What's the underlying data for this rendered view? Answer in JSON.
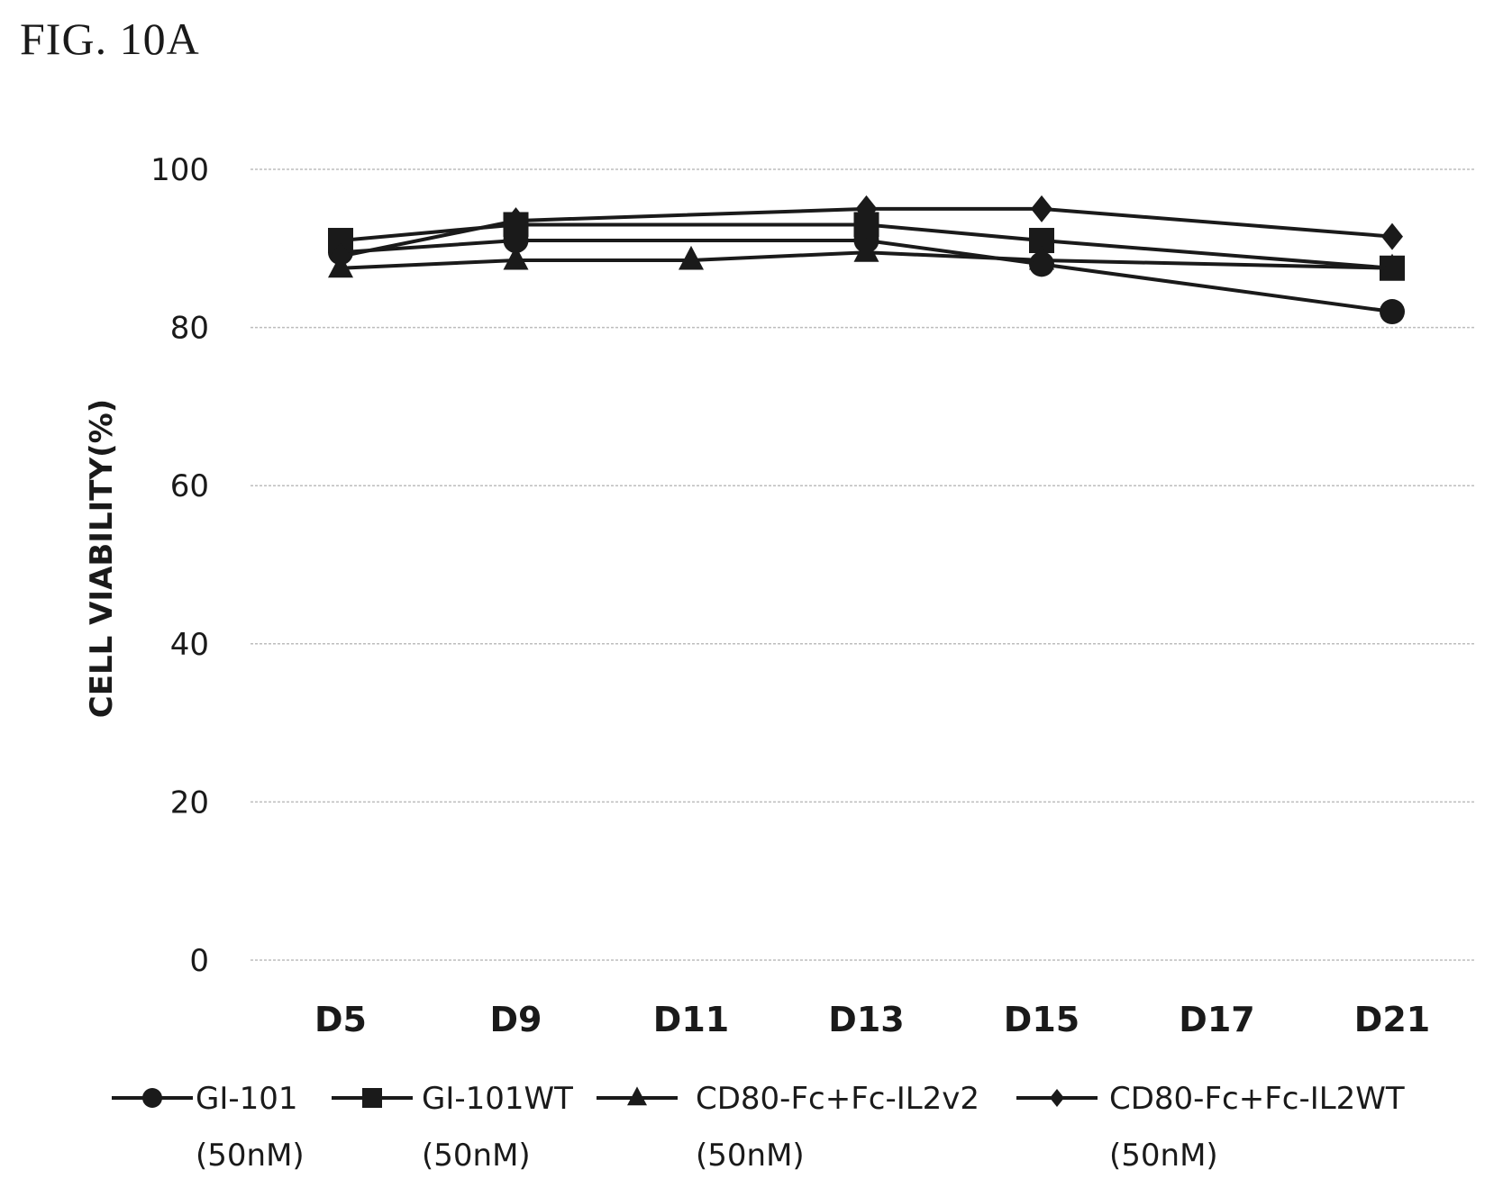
{
  "figure_label": "FIG. 10A",
  "chart_data": {
    "type": "line",
    "title": "",
    "xlabel": "",
    "ylabel": "CELL VIABILITY(%)",
    "ylim": [
      0,
      100
    ],
    "yticks": [
      0,
      20,
      40,
      60,
      80,
      100
    ],
    "grid": true,
    "legend_position": "bottom",
    "categories": [
      "D5",
      "D9",
      "D11",
      "D13",
      "D15",
      "D17",
      "D21"
    ],
    "series": [
      {
        "name": "GI-101",
        "name_line2": "(50nM)",
        "marker": "circle",
        "x": [
          "D5",
          "D9",
          "D13",
          "D15",
          "D21"
        ],
        "values": [
          89.5,
          91,
          91,
          88,
          82
        ]
      },
      {
        "name": "GI-101WT",
        "name_line2": "(50nM)",
        "marker": "square",
        "x": [
          "D5",
          "D9",
          "D13",
          "D15",
          "D21"
        ],
        "values": [
          91,
          93,
          93,
          91,
          87.5
        ]
      },
      {
        "name": "CD80-Fc+Fc-IL2v2",
        "name_line2": "(50nM)",
        "marker": "triangle",
        "x": [
          "D5",
          "D9",
          "D11",
          "D13",
          "D15",
          "D21"
        ],
        "values": [
          87.5,
          88.5,
          88.5,
          89.5,
          88.5,
          87.5
        ]
      },
      {
        "name": "CD80-Fc+Fc-IL2WT",
        "name_line2": "(50nM)",
        "marker": "diamond",
        "x": [
          "D5",
          "D9",
          "D13",
          "D15",
          "D21"
        ],
        "values": [
          89,
          93.5,
          95,
          95,
          91.5
        ]
      }
    ],
    "line_color": "#1a1a1a",
    "grid_color": "#bdbdbd"
  }
}
